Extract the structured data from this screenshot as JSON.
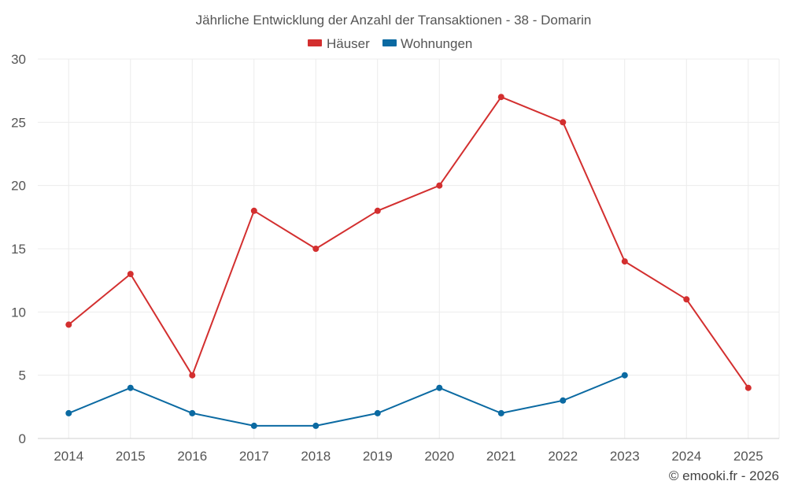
{
  "chart_data": {
    "type": "line",
    "title": "Jährliche Entwicklung der Anzahl der Transaktionen - 38 - Domarin",
    "categories": [
      "2014",
      "2015",
      "2016",
      "2017",
      "2018",
      "2019",
      "2020",
      "2021",
      "2022",
      "2023",
      "2024",
      "2025"
    ],
    "series": [
      {
        "name": "Häuser",
        "color": "#d32f2f",
        "values": [
          9,
          13,
          5,
          18,
          15,
          18,
          20,
          27,
          25,
          14,
          11,
          4
        ]
      },
      {
        "name": "Wohnungen",
        "color": "#0b6aa2",
        "values": [
          2,
          4,
          2,
          1,
          1,
          2,
          4,
          2,
          3,
          5,
          null,
          null
        ]
      }
    ],
    "ylim": [
      0,
      30
    ],
    "yticks": [
      0,
      5,
      10,
      15,
      20,
      25,
      30
    ],
    "legend_position": "top-center",
    "grid": true
  },
  "credit": "© emooki.fr - 2026"
}
